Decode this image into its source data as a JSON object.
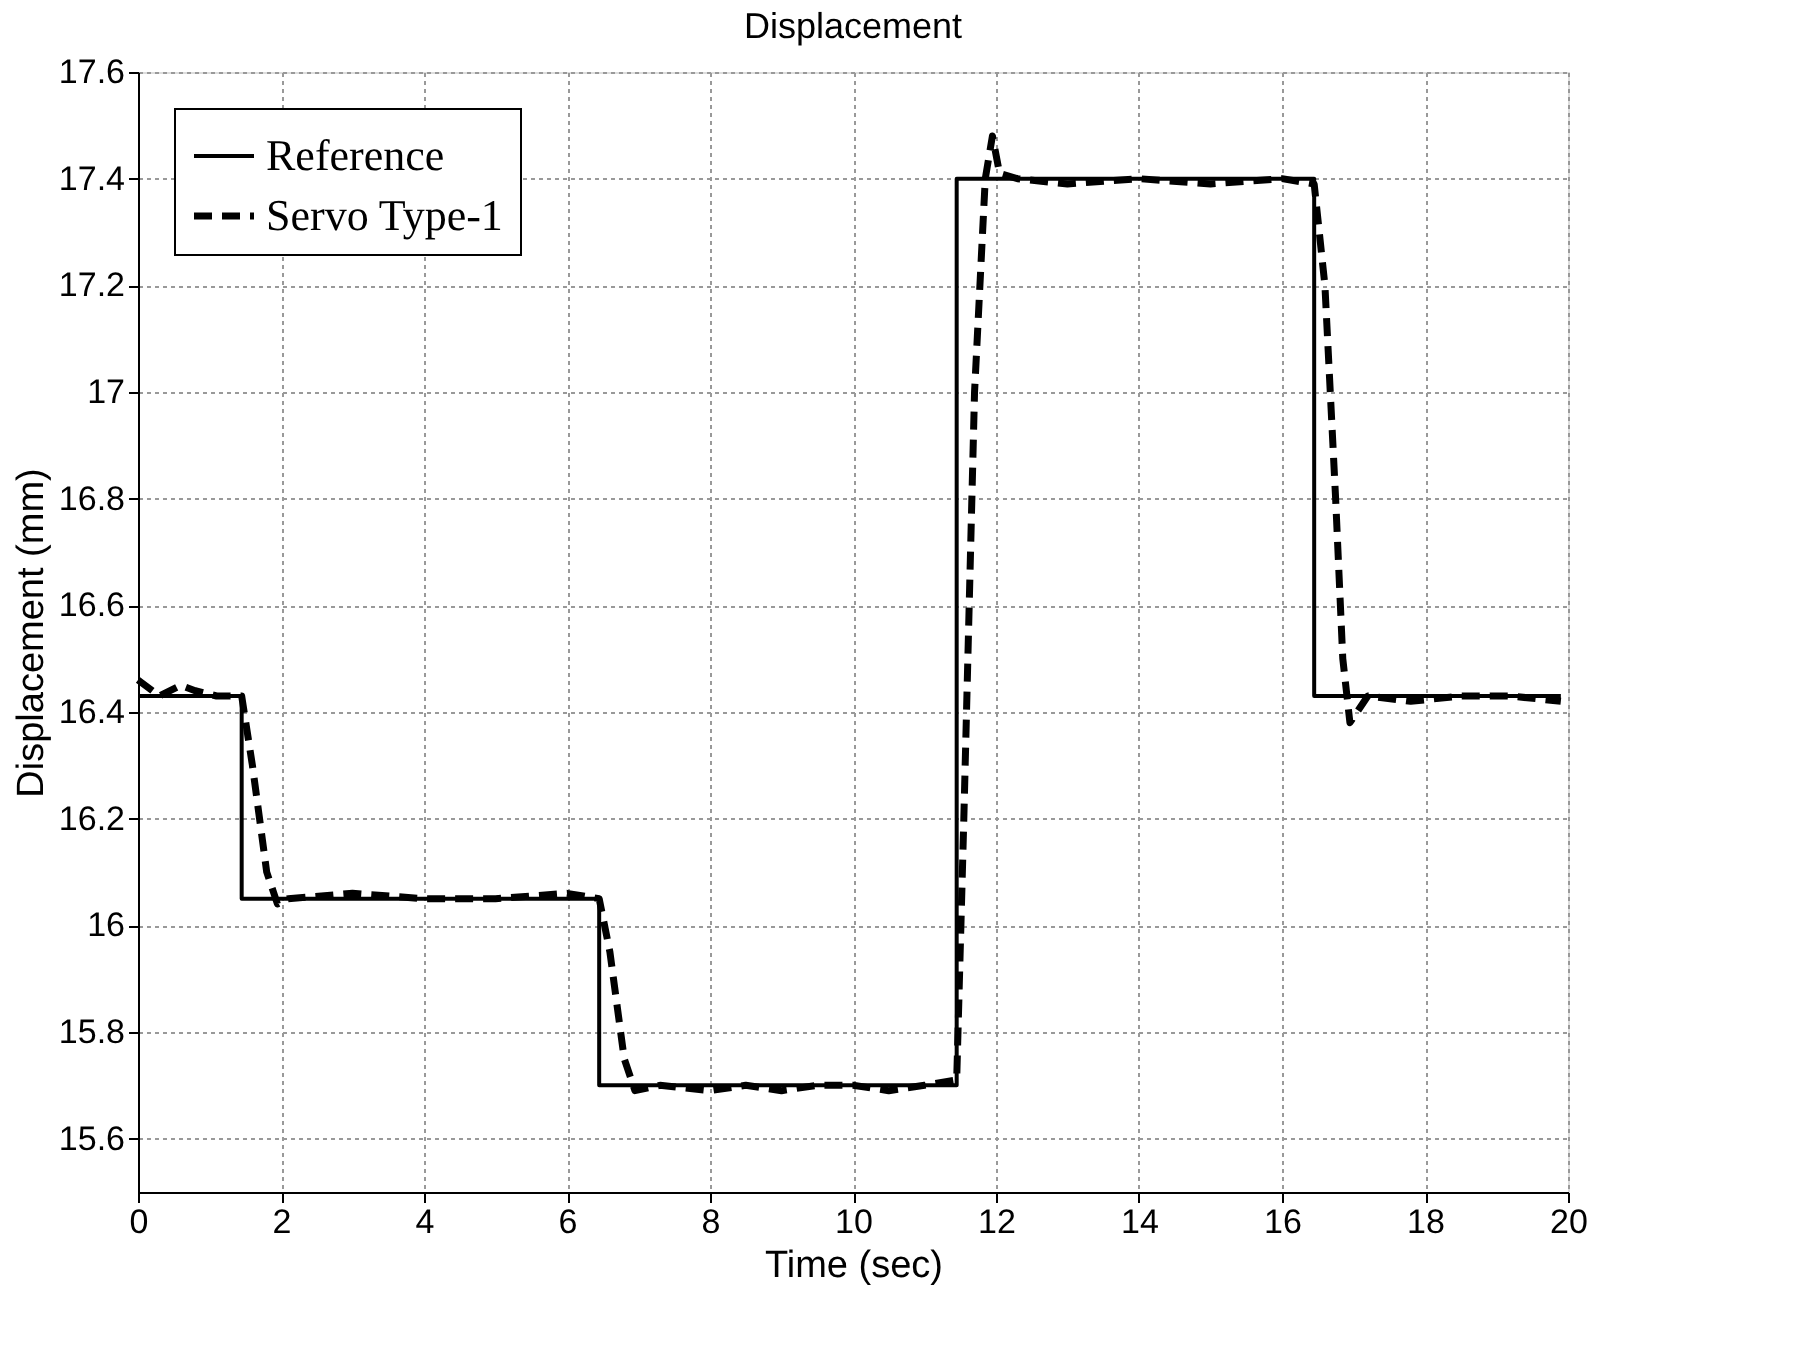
{
  "chart_data": {
    "type": "line",
    "title": "Displacement",
    "xlabel": "Time (sec)",
    "ylabel": "Displacement (mm)",
    "xlim": [
      0,
      20
    ],
    "xticks": [
      0,
      2,
      4,
      6,
      8,
      10,
      12,
      14,
      16,
      18,
      20
    ],
    "ylim": [
      15.5,
      17.6
    ],
    "yticks": [
      15.6,
      15.8,
      {
        "value": 16,
        "label": "16"
      },
      16.2,
      16.4,
      16.6,
      16.8,
      {
        "value": 17,
        "label": "17"
      },
      17.2,
      17.4,
      17.6
    ],
    "grid": true,
    "legend": "top left",
    "series": [
      {
        "name": "Reference",
        "color": "#000000",
        "line_style": "solid",
        "x": [
          0,
          1.45,
          1.45,
          6.45,
          6.45,
          11.45,
          11.45,
          16.45,
          16.45,
          19.9
        ],
        "values": [
          16.43,
          16.43,
          16.05,
          16.05,
          15.7,
          15.7,
          17.4,
          17.4,
          16.43,
          16.43
        ]
      },
      {
        "name": "Servo Type-1",
        "color": "#000000",
        "line_style": "dashed",
        "x": [
          0,
          0.3,
          0.6,
          0.8,
          1.1,
          1.45,
          1.6,
          1.8,
          1.95,
          2.1,
          3,
          4,
          5,
          6,
          6.45,
          6.6,
          6.8,
          6.95,
          7.3,
          8,
          8.5,
          9,
          9.5,
          10,
          10.5,
          11,
          11.45,
          11.55,
          11.7,
          11.85,
          11.95,
          12.05,
          12.3,
          13,
          14,
          15,
          16,
          16.45,
          16.6,
          16.75,
          16.85,
          16.95,
          17.2,
          17.8,
          18.5,
          19.2,
          19.9
        ],
        "values": [
          16.46,
          16.43,
          16.45,
          16.44,
          16.43,
          16.43,
          16.3,
          16.1,
          16.04,
          16.05,
          16.06,
          16.05,
          16.05,
          16.06,
          16.05,
          15.95,
          15.75,
          15.69,
          15.7,
          15.69,
          15.7,
          15.69,
          15.7,
          15.7,
          15.69,
          15.7,
          15.71,
          16.2,
          17.0,
          17.4,
          17.48,
          17.41,
          17.4,
          17.39,
          17.4,
          17.39,
          17.4,
          17.39,
          17.2,
          16.8,
          16.5,
          16.38,
          16.43,
          16.42,
          16.43,
          16.43,
          16.42
        ]
      }
    ]
  }
}
